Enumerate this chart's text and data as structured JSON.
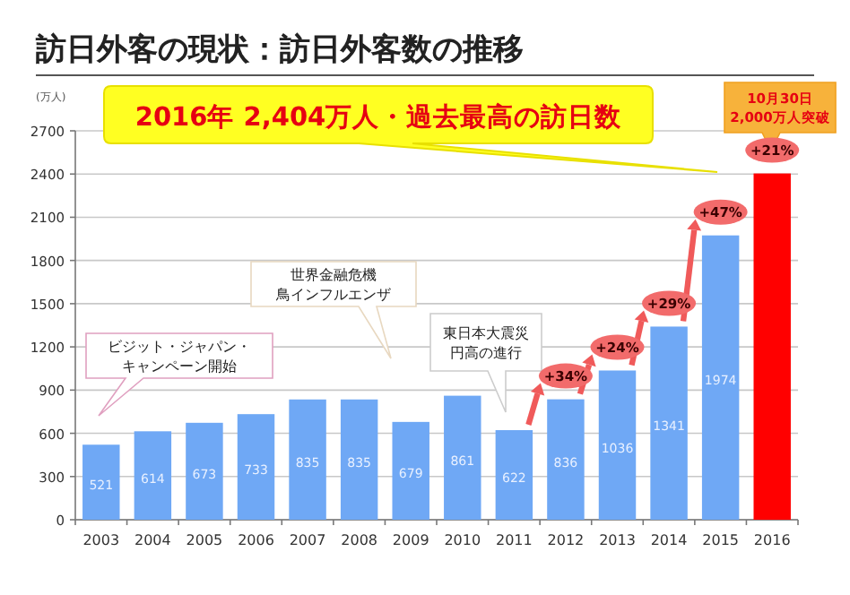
{
  "chart_data": {
    "type": "bar",
    "title": "訪日外客の現状：訪日外客数の推移",
    "subtitle": "2016年 2,404万人・過去最高の訪日数",
    "ylabel": "(万人)",
    "categories": [
      "2003",
      "2004",
      "2005",
      "2006",
      "2007",
      "2008",
      "2009",
      "2010",
      "2011",
      "2012",
      "2013",
      "2014",
      "2015",
      "2016"
    ],
    "values": [
      521,
      614,
      673,
      733,
      835,
      835,
      679,
      861,
      622,
      836,
      1036,
      1341,
      1974,
      2404
    ],
    "colors": [
      "#6fa8f5",
      "#6fa8f5",
      "#6fa8f5",
      "#6fa8f5",
      "#6fa8f5",
      "#6fa8f5",
      "#6fa8f5",
      "#6fa8f5",
      "#6fa8f5",
      "#6fa8f5",
      "#6fa8f5",
      "#6fa8f5",
      "#6fa8f5",
      "#ff0000"
    ],
    "value_labels": [
      "521",
      "614",
      "673",
      "733",
      "835",
      "835",
      "679",
      "861",
      "622",
      "836",
      "1036",
      "1341",
      "1974",
      null
    ],
    "ylim": [
      0,
      2700
    ],
    "yticks": [
      0,
      300,
      600,
      900,
      1200,
      1500,
      1800,
      2100,
      2400,
      2700
    ],
    "grid": "y",
    "annotations": [
      "ビジット・ジャパン・",
      "キャンペーン開始",
      "世界金融危機",
      "鳥インフルエンザ",
      "東日本大震災",
      "円高の進行",
      "10月30日",
      "2,000万人突破",
      {
        "text": "+34%",
        "x": "2012",
        "y": 836
      },
      {
        "text": "+24%",
        "x": "2013",
        "y": 1036
      },
      {
        "text": "+29%",
        "x": "2014",
        "y": 1341
      },
      {
        "text": "+47%",
        "x": "2015",
        "y": 1974
      },
      {
        "text": "+21%",
        "x": "2016",
        "y": 2404
      }
    ]
  }
}
